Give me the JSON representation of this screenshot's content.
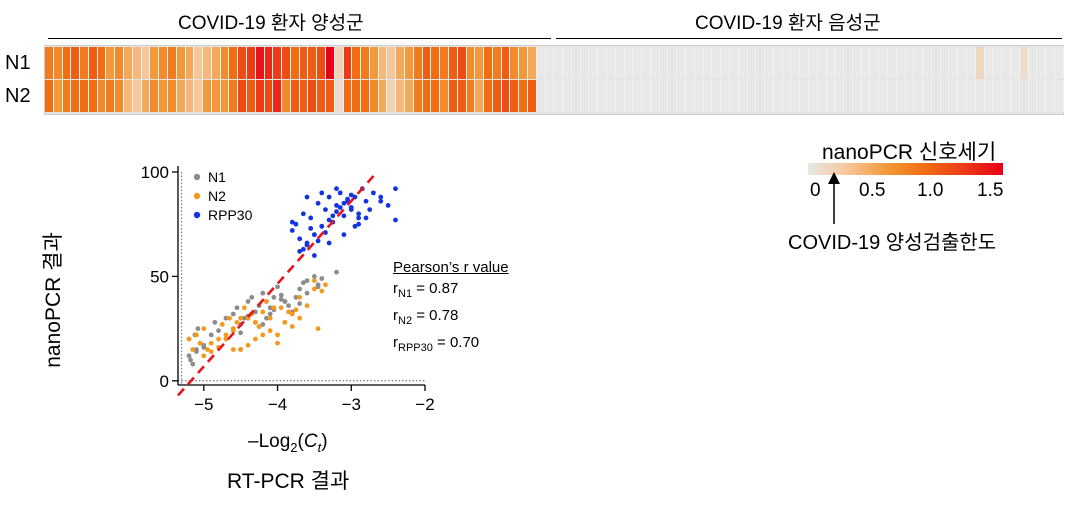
{
  "heatmap": {
    "groups": [
      {
        "label": "COVID-19 환자 양성군"
      },
      {
        "label": "COVID-19 환자 음성군"
      }
    ],
    "rows": [
      {
        "label": "N1",
        "values": [
          0.8,
          0.7,
          0.9,
          1.0,
          0.8,
          1.0,
          0.9,
          0.6,
          0.7,
          0.5,
          0.4,
          0.3,
          0.6,
          0.7,
          0.8,
          0.6,
          0.5,
          0.3,
          0.4,
          0.5,
          0.7,
          0.9,
          1.1,
          1.2,
          1.4,
          1.3,
          1.2,
          1.1,
          0.9,
          1.0,
          1.0,
          1.1,
          1.5,
          0.2,
          1.2,
          0.9,
          0.8,
          0.6,
          0.4,
          0.3,
          0.5,
          0.6,
          0.8,
          1.0,
          0.9,
          0.8,
          1.0,
          1.1,
          0.7,
          0.6,
          0.9,
          0.8,
          1.0,
          0.7,
          0.6,
          0.5,
          0.0,
          0.0,
          0.0,
          0.0,
          0.0,
          0.0,
          0.0,
          0.0,
          0.0,
          0.0,
          0.0,
          0.0,
          0.0,
          0.0,
          0.0,
          0.0,
          0.0,
          0.0,
          0.0,
          0.0,
          0.0,
          0.0,
          0.0,
          0.0,
          0.0,
          0.0,
          0.0,
          0.0,
          0.0,
          0.0,
          0.0,
          0.0,
          0.0,
          0.0,
          0.0,
          0.0,
          0.0,
          0.0,
          0.0,
          0.0,
          0.0,
          0.0,
          0.0,
          0.0,
          0.0,
          0.0,
          0.0,
          0.0,
          0.0,
          0.0,
          0.15,
          0.0,
          0.0,
          0.0,
          0.0,
          0.1,
          0.0,
          0.0,
          0.0,
          0.0
        ]
      },
      {
        "label": "N2",
        "values": [
          0.9,
          0.6,
          0.8,
          0.9,
          0.9,
          0.9,
          0.7,
          0.8,
          0.7,
          0.4,
          0.3,
          0.5,
          0.7,
          0.6,
          0.7,
          0.5,
          0.4,
          0.3,
          0.6,
          0.6,
          0.6,
          0.8,
          1.1,
          1.0,
          1.2,
          1.1,
          1.3,
          0.7,
          1.0,
          1.0,
          1.1,
          1.0,
          1.0,
          0.1,
          0.9,
          0.9,
          0.9,
          0.7,
          0.5,
          0.2,
          0.4,
          0.5,
          0.8,
          0.9,
          0.9,
          0.7,
          1.0,
          1.0,
          0.8,
          0.5,
          0.9,
          1.0,
          1.1,
          1.0,
          0.9,
          1.0,
          0.0,
          0.0,
          0.0,
          0.0,
          0.0,
          0.0,
          0.0,
          0.0,
          0.0,
          0.0,
          0.0,
          0.0,
          0.0,
          0.0,
          0.0,
          0.0,
          0.0,
          0.0,
          0.0,
          0.0,
          0.0,
          0.0,
          0.0,
          0.0,
          0.0,
          0.0,
          0.0,
          0.0,
          0.0,
          0.0,
          0.0,
          0.0,
          0.0,
          0.0,
          0.0,
          0.0,
          0.0,
          0.0,
          0.0,
          0.0,
          0.0,
          0.0,
          0.0,
          0.0,
          0.0,
          0.0,
          0.0,
          0.0,
          0.0,
          0.0,
          0.0,
          0.0,
          0.0,
          0.0,
          0.0,
          0.0,
          0.0,
          0.0,
          0.0,
          0.0
        ]
      }
    ],
    "positive_count": 56,
    "negative_count": 60
  },
  "colorbar": {
    "title": "nanoPCR 신호세기",
    "ticks": [
      "0",
      "0.5",
      "1.0",
      "1.5"
    ],
    "range": [
      0,
      1.5
    ],
    "colors": [
      "#e8e8e8",
      "#f6c79a",
      "#f29a3a",
      "#f06d12",
      "#ec3b16",
      "#e80018"
    ],
    "lod_label": "COVID-19 양성검출한도"
  },
  "chart_data": {
    "type": "scatter",
    "ylabel": "nanoPCR 결과",
    "xlabel_main": "–Log",
    "xlabel_sub": "2",
    "xlabel_paren_open": "(",
    "xlabel_ct": "C",
    "xlabel_ct_sub": "t",
    "xlabel_paren_close": ")",
    "xtitle": "RT-PCR 결과",
    "xlim": [
      -5.35,
      -2
    ],
    "ylim": [
      -2,
      100
    ],
    "xticks": [
      "-5",
      "-4",
      "-3",
      "-2"
    ],
    "yticks": [
      "0",
      "50",
      "100"
    ],
    "lod_x": -5.3,
    "fit_line": {
      "x": [
        -5.35,
        -2.65
      ],
      "y": [
        -7,
        100
      ],
      "color": "#e8141c"
    },
    "series": [
      {
        "name": "N1",
        "color": "#8c8c8c",
        "x": [
          -5.15,
          -5.2,
          -5.1,
          -5.05,
          -5.2,
          -5.12,
          -5.0,
          -5.18,
          -5.08,
          -4.9,
          -4.85,
          -4.7,
          -4.6,
          -4.55,
          -4.5,
          -4.45,
          -4.4,
          -4.35,
          -4.3,
          -4.25,
          -4.2,
          -4.15,
          -4.1,
          -4.05,
          -4.0,
          -3.95,
          -3.9,
          -3.85,
          -3.8,
          -3.75,
          -3.7,
          -3.65,
          -3.6,
          -3.5,
          -3.45,
          -3.4,
          -3.2,
          -4.6,
          -4.4,
          -4.3,
          -4.2,
          -4.1,
          -3.9,
          -4.8,
          -5.1,
          -5.0,
          -4.7,
          -4.5,
          -4.25,
          -4.15,
          -4.05,
          -3.95,
          -3.7,
          -3.6,
          -3.45
        ],
        "y": [
          8,
          12,
          15,
          18,
          20,
          22,
          17,
          10,
          25,
          22,
          28,
          30,
          32,
          35,
          27,
          30,
          38,
          40,
          33,
          36,
          42,
          38,
          35,
          40,
          45,
          41,
          38,
          36,
          33,
          40,
          44,
          47,
          48,
          50,
          45,
          49,
          52,
          25,
          31,
          28,
          27,
          32,
          38,
          24,
          14,
          16,
          20,
          23,
          26,
          30,
          34,
          39,
          37,
          42,
          46
        ]
      },
      {
        "name": "N2",
        "color": "#f39a1e",
        "x": [
          -5.2,
          -5.15,
          -5.1,
          -5.05,
          -5.0,
          -4.95,
          -4.9,
          -4.8,
          -4.75,
          -4.7,
          -4.65,
          -4.6,
          -4.55,
          -4.5,
          -4.45,
          -4.4,
          -4.35,
          -4.3,
          -4.25,
          -4.2,
          -4.15,
          -4.1,
          -4.05,
          -4.0,
          -3.95,
          -3.9,
          -3.85,
          -3.8,
          -3.75,
          -3.7,
          -3.6,
          -3.5,
          -3.45,
          -3.4,
          -3.35,
          -4.6,
          -4.5,
          -4.4,
          -4.3,
          -4.2,
          -4.1,
          -4.0,
          -3.9,
          -3.8,
          -4.7,
          -4.6,
          -4.5,
          -5.0,
          -4.9,
          -4.8,
          -3.7,
          -3.5
        ],
        "y": [
          20,
          15,
          22,
          18,
          25,
          15,
          14,
          20,
          27,
          22,
          30,
          25,
          28,
          15,
          35,
          30,
          32,
          28,
          26,
          33,
          38,
          30,
          35,
          22,
          35,
          28,
          33,
          26,
          34,
          30,
          36,
          44,
          25,
          43,
          46,
          15,
          15,
          17,
          20,
          22,
          24,
          18,
          28,
          32,
          20,
          24,
          30,
          12,
          18,
          16,
          40,
          48
        ]
      },
      {
        "name": "RPP30",
        "color": "#1235e0",
        "x": [
          -3.8,
          -3.75,
          -3.7,
          -3.65,
          -3.6,
          -3.55,
          -3.5,
          -3.45,
          -3.4,
          -3.35,
          -3.3,
          -3.25,
          -3.2,
          -3.15,
          -3.1,
          -3.05,
          -3.0,
          -2.95,
          -2.9,
          -2.85,
          -2.8,
          -2.7,
          -2.6,
          -2.5,
          -2.4,
          -3.7,
          -3.6,
          -3.5,
          -3.4,
          -3.3,
          -3.2,
          -3.1,
          -3.0,
          -2.9,
          -3.55,
          -3.45,
          -3.35,
          -3.25,
          -3.15,
          -3.05,
          -2.95,
          -3.65,
          -3.5,
          -3.3,
          -3.1,
          -2.9,
          -2.75,
          -2.4,
          -3.8,
          -3.6,
          -3.4,
          -3.2,
          -3.0,
          -2.8,
          -2.6
        ],
        "y": [
          72,
          75,
          68,
          80,
          65,
          78,
          70,
          85,
          74,
          82,
          88,
          76,
          84,
          90,
          79,
          86,
          83,
          88,
          80,
          92,
          86,
          90,
          88,
          84,
          92,
          62,
          66,
          70,
          74,
          77,
          81,
          85,
          89,
          78,
          73,
          67,
          71,
          79,
          83,
          87,
          74,
          63,
          60,
          66,
          70,
          75,
          82,
          77,
          76,
          88,
          90,
          92,
          82,
          78,
          86
        ]
      }
    ]
  },
  "pearson": {
    "title": "Pearson’s r value",
    "lines": [
      {
        "prefix": "r",
        "sub": "N1",
        "value": " = 0.87"
      },
      {
        "prefix": "r",
        "sub": "N2",
        "value": " = 0.78"
      },
      {
        "prefix": "r",
        "sub": "RPP30",
        "value": " = 0.70"
      }
    ]
  }
}
